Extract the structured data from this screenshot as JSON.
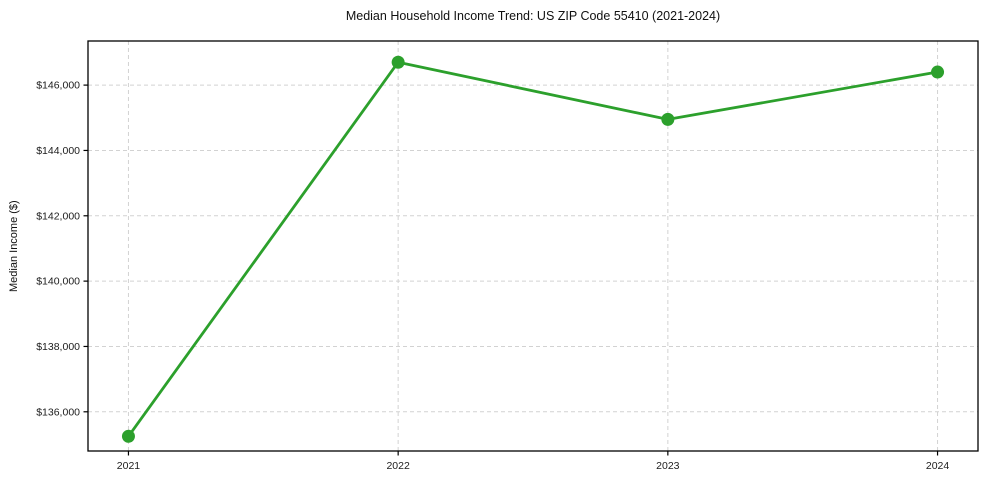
{
  "chart_data": {
    "type": "line",
    "title": "Median Household Income Trend: US ZIP Code 55410 (2021-2024)",
    "xlabel": "",
    "ylabel": "Median Income ($)",
    "x": [
      2021,
      2022,
      2023,
      2024
    ],
    "x_tick_labels": [
      "2021",
      "2022",
      "2023",
      "2024"
    ],
    "values": [
      135250,
      146700,
      144950,
      146400
    ],
    "y_ticks": [
      136000,
      138000,
      140000,
      142000,
      144000,
      146000
    ],
    "y_tick_labels": [
      "$136,000",
      "$138,000",
      "$140,000",
      "$142,000",
      "$144,000",
      "$146,000"
    ],
    "xlim": [
      2020.85,
      2024.15
    ],
    "ylim": [
      134800,
      147350
    ],
    "grid": true,
    "grid_style": "dashed",
    "legend": false,
    "marker": "circle",
    "line_color": "#2ca02c",
    "style": {
      "background": "#ffffff",
      "grid_color": "#d2d2d2",
      "axis_color": "#000000",
      "text_color": "#1c1c1c"
    }
  }
}
